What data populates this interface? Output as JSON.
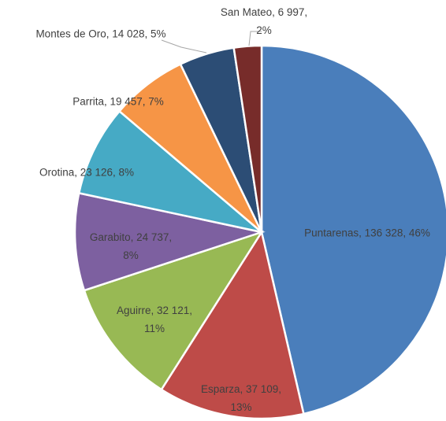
{
  "chart_data": {
    "type": "pie",
    "values": [
      136328,
      37109,
      32121,
      24737,
      23126,
      19457,
      14028,
      6997
    ],
    "value_labels": [
      [
        "Puntarenas,   136 328, 46%"
      ],
      [
        "Esparza,   37 109,",
        "13%"
      ],
      [
        "Aguirre,   32 121,",
        "11%"
      ],
      [
        "Garabito,   24 737,",
        "8%"
      ],
      [
        "Orotina,   23 126, 8%"
      ],
      [
        "Parrita,   19 457, 7%"
      ],
      [
        "Montes de Oro,   14 028, 5%"
      ],
      [
        "San Mateo,   6 997,",
        "2%"
      ]
    ],
    "colors": [
      "#4a7ebb",
      "#be4b48",
      "#98b954",
      "#7d60a0",
      "#46aac5",
      "#f69546",
      "#2c4d75",
      "#772c2a"
    ]
  }
}
